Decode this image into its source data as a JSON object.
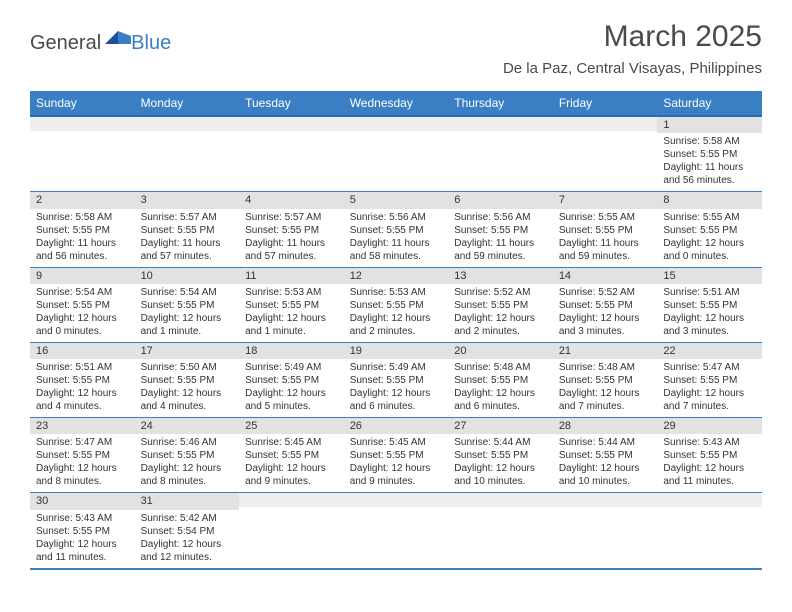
{
  "logo": {
    "general": "General",
    "blue": "Blue"
  },
  "title": "March 2025",
  "location": "De la Paz, Central Visayas, Philippines",
  "colors": {
    "header_bg": "#3a7fc4",
    "header_text": "#ffffff",
    "daynum_bg": "#e2e2e2",
    "grid_line": "#3a7fc4",
    "text": "#333333",
    "page_bg": "#ffffff"
  },
  "weekdays": [
    "Sunday",
    "Monday",
    "Tuesday",
    "Wednesday",
    "Thursday",
    "Friday",
    "Saturday"
  ],
  "weeks": [
    [
      null,
      null,
      null,
      null,
      null,
      null,
      {
        "n": "1",
        "sunrise": "Sunrise: 5:58 AM",
        "sunset": "Sunset: 5:55 PM",
        "daylight": "Daylight: 11 hours and 56 minutes."
      }
    ],
    [
      {
        "n": "2",
        "sunrise": "Sunrise: 5:58 AM",
        "sunset": "Sunset: 5:55 PM",
        "daylight": "Daylight: 11 hours and 56 minutes."
      },
      {
        "n": "3",
        "sunrise": "Sunrise: 5:57 AM",
        "sunset": "Sunset: 5:55 PM",
        "daylight": "Daylight: 11 hours and 57 minutes."
      },
      {
        "n": "4",
        "sunrise": "Sunrise: 5:57 AM",
        "sunset": "Sunset: 5:55 PM",
        "daylight": "Daylight: 11 hours and 57 minutes."
      },
      {
        "n": "5",
        "sunrise": "Sunrise: 5:56 AM",
        "sunset": "Sunset: 5:55 PM",
        "daylight": "Daylight: 11 hours and 58 minutes."
      },
      {
        "n": "6",
        "sunrise": "Sunrise: 5:56 AM",
        "sunset": "Sunset: 5:55 PM",
        "daylight": "Daylight: 11 hours and 59 minutes."
      },
      {
        "n": "7",
        "sunrise": "Sunrise: 5:55 AM",
        "sunset": "Sunset: 5:55 PM",
        "daylight": "Daylight: 11 hours and 59 minutes."
      },
      {
        "n": "8",
        "sunrise": "Sunrise: 5:55 AM",
        "sunset": "Sunset: 5:55 PM",
        "daylight": "Daylight: 12 hours and 0 minutes."
      }
    ],
    [
      {
        "n": "9",
        "sunrise": "Sunrise: 5:54 AM",
        "sunset": "Sunset: 5:55 PM",
        "daylight": "Daylight: 12 hours and 0 minutes."
      },
      {
        "n": "10",
        "sunrise": "Sunrise: 5:54 AM",
        "sunset": "Sunset: 5:55 PM",
        "daylight": "Daylight: 12 hours and 1 minute."
      },
      {
        "n": "11",
        "sunrise": "Sunrise: 5:53 AM",
        "sunset": "Sunset: 5:55 PM",
        "daylight": "Daylight: 12 hours and 1 minute."
      },
      {
        "n": "12",
        "sunrise": "Sunrise: 5:53 AM",
        "sunset": "Sunset: 5:55 PM",
        "daylight": "Daylight: 12 hours and 2 minutes."
      },
      {
        "n": "13",
        "sunrise": "Sunrise: 5:52 AM",
        "sunset": "Sunset: 5:55 PM",
        "daylight": "Daylight: 12 hours and 2 minutes."
      },
      {
        "n": "14",
        "sunrise": "Sunrise: 5:52 AM",
        "sunset": "Sunset: 5:55 PM",
        "daylight": "Daylight: 12 hours and 3 minutes."
      },
      {
        "n": "15",
        "sunrise": "Sunrise: 5:51 AM",
        "sunset": "Sunset: 5:55 PM",
        "daylight": "Daylight: 12 hours and 3 minutes."
      }
    ],
    [
      {
        "n": "16",
        "sunrise": "Sunrise: 5:51 AM",
        "sunset": "Sunset: 5:55 PM",
        "daylight": "Daylight: 12 hours and 4 minutes."
      },
      {
        "n": "17",
        "sunrise": "Sunrise: 5:50 AM",
        "sunset": "Sunset: 5:55 PM",
        "daylight": "Daylight: 12 hours and 4 minutes."
      },
      {
        "n": "18",
        "sunrise": "Sunrise: 5:49 AM",
        "sunset": "Sunset: 5:55 PM",
        "daylight": "Daylight: 12 hours and 5 minutes."
      },
      {
        "n": "19",
        "sunrise": "Sunrise: 5:49 AM",
        "sunset": "Sunset: 5:55 PM",
        "daylight": "Daylight: 12 hours and 6 minutes."
      },
      {
        "n": "20",
        "sunrise": "Sunrise: 5:48 AM",
        "sunset": "Sunset: 5:55 PM",
        "daylight": "Daylight: 12 hours and 6 minutes."
      },
      {
        "n": "21",
        "sunrise": "Sunrise: 5:48 AM",
        "sunset": "Sunset: 5:55 PM",
        "daylight": "Daylight: 12 hours and 7 minutes."
      },
      {
        "n": "22",
        "sunrise": "Sunrise: 5:47 AM",
        "sunset": "Sunset: 5:55 PM",
        "daylight": "Daylight: 12 hours and 7 minutes."
      }
    ],
    [
      {
        "n": "23",
        "sunrise": "Sunrise: 5:47 AM",
        "sunset": "Sunset: 5:55 PM",
        "daylight": "Daylight: 12 hours and 8 minutes."
      },
      {
        "n": "24",
        "sunrise": "Sunrise: 5:46 AM",
        "sunset": "Sunset: 5:55 PM",
        "daylight": "Daylight: 12 hours and 8 minutes."
      },
      {
        "n": "25",
        "sunrise": "Sunrise: 5:45 AM",
        "sunset": "Sunset: 5:55 PM",
        "daylight": "Daylight: 12 hours and 9 minutes."
      },
      {
        "n": "26",
        "sunrise": "Sunrise: 5:45 AM",
        "sunset": "Sunset: 5:55 PM",
        "daylight": "Daylight: 12 hours and 9 minutes."
      },
      {
        "n": "27",
        "sunrise": "Sunrise: 5:44 AM",
        "sunset": "Sunset: 5:55 PM",
        "daylight": "Daylight: 12 hours and 10 minutes."
      },
      {
        "n": "28",
        "sunrise": "Sunrise: 5:44 AM",
        "sunset": "Sunset: 5:55 PM",
        "daylight": "Daylight: 12 hours and 10 minutes."
      },
      {
        "n": "29",
        "sunrise": "Sunrise: 5:43 AM",
        "sunset": "Sunset: 5:55 PM",
        "daylight": "Daylight: 12 hours and 11 minutes."
      }
    ],
    [
      {
        "n": "30",
        "sunrise": "Sunrise: 5:43 AM",
        "sunset": "Sunset: 5:55 PM",
        "daylight": "Daylight: 12 hours and 11 minutes."
      },
      {
        "n": "31",
        "sunrise": "Sunrise: 5:42 AM",
        "sunset": "Sunset: 5:54 PM",
        "daylight": "Daylight: 12 hours and 12 minutes."
      },
      null,
      null,
      null,
      null,
      null
    ]
  ]
}
